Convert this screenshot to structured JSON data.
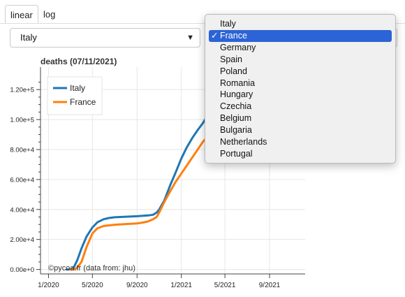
{
  "tabs": [
    {
      "label": "linear",
      "active": true
    },
    {
      "label": "log",
      "active": false
    }
  ],
  "select_left": {
    "value": "Italy"
  },
  "dropdown": {
    "check": "✓",
    "options": [
      "Italy",
      "France",
      "Germany",
      "Spain",
      "Poland",
      "Romania",
      "Hungary",
      "Czechia",
      "Belgium",
      "Bulgaria",
      "Netherlands",
      "Portugal"
    ],
    "selected": "France",
    "highlight_color": "#2c63d6"
  },
  "chart_data": {
    "type": "line",
    "title": "deaths (07/11/2021)",
    "xlabel": "",
    "ylabel": "",
    "x_ticks": [
      "1/2020",
      "5/2020",
      "9/2020",
      "1/2021",
      "5/2021",
      "9/2021"
    ],
    "y_ticks": [
      "0.00e+0",
      "2.00e+4",
      "4.00e+4",
      "6.00e+4",
      "8.00e+4",
      "1.00e+5",
      "1.20e+5"
    ],
    "ylim": [
      -3000,
      135000
    ],
    "grid": true,
    "legend_position": "top-left",
    "credit": "©pycoa.fr (data from: jhu)",
    "series": [
      {
        "name": "Italy",
        "color": "#1f77b4",
        "points": [
          [
            "2020-02-20",
            0
          ],
          [
            "2020-03-01",
            100
          ],
          [
            "2020-03-10",
            1000
          ],
          [
            "2020-03-20",
            6000
          ],
          [
            "2020-04-01",
            14000
          ],
          [
            "2020-04-15",
            22000
          ],
          [
            "2020-05-01",
            28000
          ],
          [
            "2020-05-15",
            31500
          ],
          [
            "2020-06-01",
            33500
          ],
          [
            "2020-06-15",
            34300
          ],
          [
            "2020-07-01",
            34800
          ],
          [
            "2020-08-01",
            35200
          ],
          [
            "2020-09-01",
            35500
          ],
          [
            "2020-10-01",
            36000
          ],
          [
            "2020-10-15",
            36500
          ],
          [
            "2020-10-25",
            38000
          ],
          [
            "2020-11-01",
            40000
          ],
          [
            "2020-11-15",
            46000
          ],
          [
            "2020-12-01",
            56000
          ],
          [
            "2020-12-15",
            64000
          ],
          [
            "2021-01-01",
            74000
          ],
          [
            "2021-01-15",
            81000
          ],
          [
            "2021-02-01",
            88000
          ],
          [
            "2021-02-15",
            93000
          ],
          [
            "2021-03-01",
            97500
          ],
          [
            "2021-03-15",
            103000
          ],
          [
            "2021-04-01",
            110000
          ],
          [
            "2021-04-15",
            117000
          ]
        ]
      },
      {
        "name": "France",
        "color": "#ff7f0e",
        "points": [
          [
            "2020-03-01",
            0
          ],
          [
            "2020-03-10",
            50
          ],
          [
            "2020-03-20",
            1000
          ],
          [
            "2020-04-01",
            5000
          ],
          [
            "2020-04-15",
            15000
          ],
          [
            "2020-05-01",
            24000
          ],
          [
            "2020-05-15",
            27500
          ],
          [
            "2020-06-01",
            29000
          ],
          [
            "2020-07-01",
            29800
          ],
          [
            "2020-08-01",
            30300
          ],
          [
            "2020-09-01",
            30700
          ],
          [
            "2020-09-15",
            31200
          ],
          [
            "2020-10-01",
            32000
          ],
          [
            "2020-10-15",
            33500
          ],
          [
            "2020-10-25",
            35000
          ],
          [
            "2020-11-01",
            38000
          ],
          [
            "2020-11-15",
            45000
          ],
          [
            "2020-12-01",
            52000
          ],
          [
            "2020-12-15",
            58000
          ],
          [
            "2021-01-01",
            64000
          ],
          [
            "2021-01-15",
            69000
          ],
          [
            "2021-02-01",
            75000
          ],
          [
            "2021-02-15",
            80000
          ],
          [
            "2021-03-01",
            85000
          ],
          [
            "2021-03-15",
            89000
          ],
          [
            "2021-04-01",
            94000
          ],
          [
            "2021-04-15",
            98500
          ]
        ]
      }
    ]
  }
}
